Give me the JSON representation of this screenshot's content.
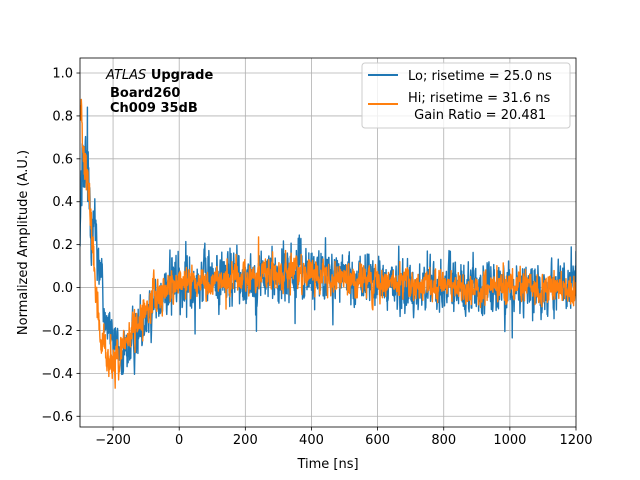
{
  "chart_data": {
    "type": "line",
    "title": "",
    "xlabel": "Time [ns]",
    "ylabel": "Normalized Amplitude (A.U.)",
    "xlim": [
      -300,
      1200
    ],
    "ylim": [
      -0.65,
      1.07
    ],
    "grid": true,
    "xticks": [
      -200,
      0,
      200,
      400,
      600,
      800,
      1000,
      1200
    ],
    "xtick_labels": [
      "−200",
      "0",
      "200",
      "400",
      "600",
      "800",
      "1000",
      "1200"
    ],
    "yticks": [
      -0.6,
      -0.4,
      -0.2,
      0.0,
      0.2,
      0.4,
      0.6,
      0.8,
      1.0
    ],
    "ytick_labels": [
      "−0.6",
      "−0.4",
      "−0.2",
      "0.0",
      "0.2",
      "0.4",
      "0.6",
      "0.8",
      "1.0"
    ],
    "annotation": {
      "italic": "ATLAS",
      "bold": "Upgrade",
      "line2": "Board260",
      "line3": "Ch009 35dB"
    },
    "legend_position": "top-right",
    "legend_extra": " Gain Ratio = 20.481",
    "series": [
      {
        "name": "Lo; risetime = 25.0 ns",
        "color": "#1f77b4",
        "envelope": {
          "x": [
            -300,
            -290,
            -280,
            -270,
            -260,
            -250,
            -240,
            -230,
            -220,
            -210,
            -200,
            -190,
            -180,
            -160,
            -140,
            -120,
            -100,
            -80,
            -60,
            -40,
            -20,
            0,
            50,
            100,
            200,
            300,
            400,
            500,
            600,
            700,
            800,
            900,
            1000,
            1100,
            1200
          ],
          "mean": [
            0.35,
            0.5,
            0.55,
            0.42,
            0.35,
            0.25,
            0.1,
            -0.05,
            -0.15,
            -0.2,
            -0.25,
            -0.3,
            -0.32,
            -0.3,
            -0.25,
            -0.2,
            -0.12,
            -0.08,
            -0.05,
            0.0,
            0.02,
            0.02,
            0.03,
            0.05,
            0.05,
            0.06,
            0.06,
            0.04,
            0.02,
            0.01,
            0.01,
            0.0,
            0.0,
            0.0,
            0.0
          ],
          "amplitude": [
            0.25,
            0.3,
            0.3,
            0.28,
            0.25,
            0.22,
            0.2,
            0.18,
            0.16,
            0.15,
            0.15,
            0.15,
            0.15,
            0.15,
            0.15,
            0.15,
            0.16,
            0.16,
            0.16,
            0.17,
            0.18,
            0.18,
            0.18,
            0.18,
            0.18,
            0.18,
            0.18,
            0.16,
            0.16,
            0.16,
            0.16,
            0.16,
            0.15,
            0.15,
            0.15
          ]
        }
      },
      {
        "name": "Hi; risetime = 31.6 ns",
        "color": "#ff7f0e",
        "envelope": {
          "x": [
            -300,
            -290,
            -280,
            -270,
            -260,
            -250,
            -240,
            -230,
            -220,
            -210,
            -200,
            -190,
            -180,
            -160,
            -140,
            -120,
            -100,
            -80,
            -60,
            -40,
            -20,
            0,
            50,
            100,
            200,
            300,
            400,
            500,
            600,
            700,
            800,
            900,
            1000,
            1100,
            1200
          ],
          "mean": [
            0.85,
            0.7,
            0.55,
            0.35,
            0.15,
            -0.05,
            -0.2,
            -0.3,
            -0.35,
            -0.38,
            -0.38,
            -0.33,
            -0.3,
            -0.25,
            -0.2,
            -0.15,
            -0.1,
            -0.06,
            -0.03,
            0.0,
            0.01,
            0.02,
            0.03,
            0.04,
            0.05,
            0.06,
            0.06,
            0.04,
            0.02,
            0.01,
            0.01,
            0.0,
            0.0,
            0.0,
            0.0
          ],
          "amplitude": [
            0.12,
            0.15,
            0.15,
            0.15,
            0.14,
            0.13,
            0.12,
            0.12,
            0.12,
            0.12,
            0.12,
            0.12,
            0.12,
            0.11,
            0.11,
            0.11,
            0.11,
            0.11,
            0.1,
            0.1,
            0.1,
            0.1,
            0.1,
            0.1,
            0.1,
            0.1,
            0.1,
            0.09,
            0.09,
            0.09,
            0.09,
            0.09,
            0.09,
            0.09,
            0.09
          ]
        }
      }
    ]
  }
}
